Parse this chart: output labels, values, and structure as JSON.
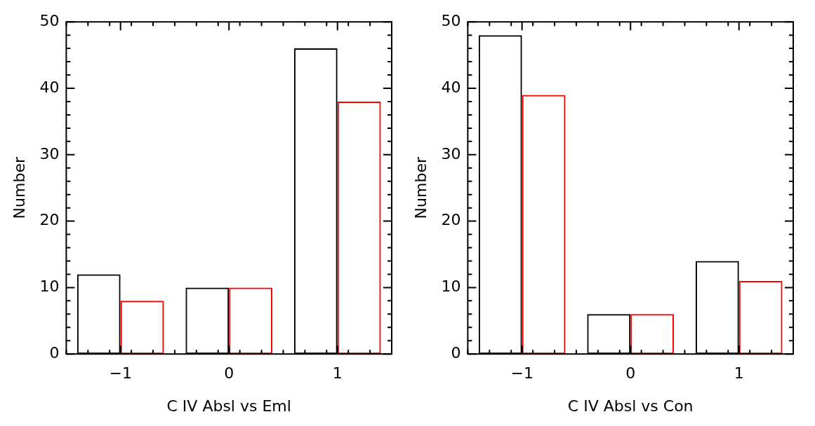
{
  "chart_data": [
    {
      "type": "bar",
      "xlabel": "C IV Absl vs Eml",
      "ylabel": "Number",
      "categories": [
        "−1",
        "0",
        "1"
      ],
      "ylim": [
        0,
        50
      ],
      "yticks": [
        0,
        10,
        20,
        30,
        40,
        50
      ],
      "grid": false,
      "legend": false,
      "series": [
        {
          "color": "#000000",
          "values": [
            12,
            10,
            46
          ]
        },
        {
          "color": "#ff0000",
          "values": [
            8,
            10,
            38
          ]
        }
      ]
    },
    {
      "type": "bar",
      "xlabel": "C IV Absl vs Con",
      "ylabel": "Number",
      "categories": [
        "−1",
        "0",
        "1"
      ],
      "ylim": [
        0,
        50
      ],
      "yticks": [
        0,
        10,
        20,
        30,
        40,
        50
      ],
      "grid": false,
      "legend": false,
      "series": [
        {
          "color": "#000000",
          "values": [
            48,
            6,
            14
          ]
        },
        {
          "color": "#ff0000",
          "values": [
            39,
            6,
            11
          ]
        }
      ]
    }
  ]
}
